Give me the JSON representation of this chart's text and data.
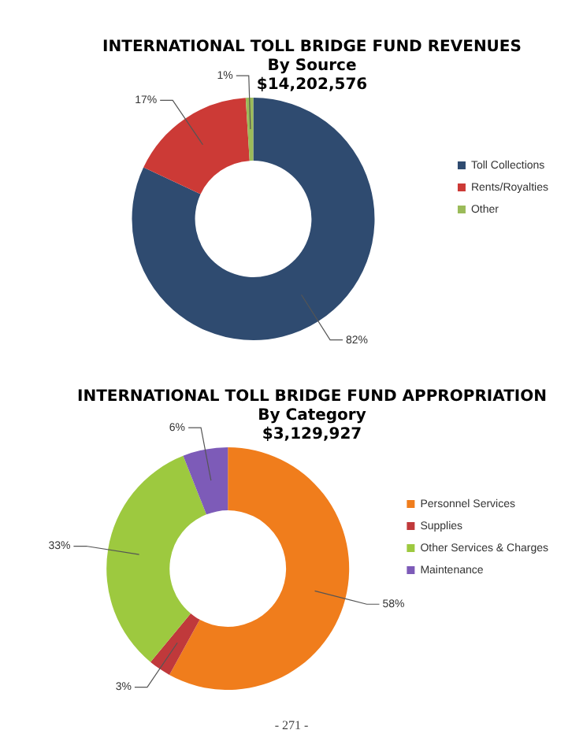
{
  "chart_data": [
    {
      "type": "donut",
      "title": "INTERNATIONAL TOLL BRIDGE FUND REVENUES",
      "subtitle": "By Source",
      "annotations": [
        "$14,202,576"
      ],
      "categories": [
        "Toll Collections",
        "Rents/Royalties",
        "Other"
      ],
      "values": [
        82,
        17,
        1
      ],
      "colors": [
        "#2f4b70",
        "#cc3a36",
        "#9bbb59"
      ],
      "value_labels": [
        "82%",
        "17%",
        "1%"
      ],
      "legend": "right"
    },
    {
      "type": "donut",
      "title": "INTERNATIONAL TOLL BRIDGE FUND APPROPRIATION",
      "subtitle": "By Category",
      "annotations": [
        "$3,129,927",
        "- 271 -"
      ],
      "categories": [
        "Personnel Services",
        "Supplies",
        "Other Services & Charges",
        "Maintenance"
      ],
      "values": [
        58,
        3,
        33,
        6
      ],
      "colors": [
        "#f07d1c",
        "#c0393b",
        "#9dc93f",
        "#7d5bb8"
      ],
      "value_labels": [
        "58%",
        "3%",
        "33%",
        "6%"
      ],
      "legend": "right"
    }
  ]
}
